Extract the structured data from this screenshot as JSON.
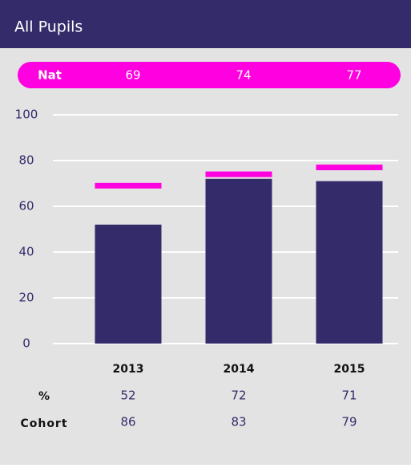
{
  "chart_data": {
    "type": "bar",
    "title": "All Pupils",
    "categories": [
      "2013",
      "2014",
      "2015"
    ],
    "series": [
      {
        "name": "%",
        "color": "#332b6a",
        "values": [
          52,
          72,
          71
        ]
      },
      {
        "name": "Nat",
        "color": "#ff00e0",
        "values": [
          69,
          74,
          77
        ]
      }
    ],
    "ylim": [
      0,
      100
    ],
    "yticks": [
      0,
      20,
      40,
      60,
      80,
      100
    ],
    "grid": true
  },
  "cohort": {
    "name": "Cohort",
    "values": [
      86,
      83,
      79
    ]
  }
}
